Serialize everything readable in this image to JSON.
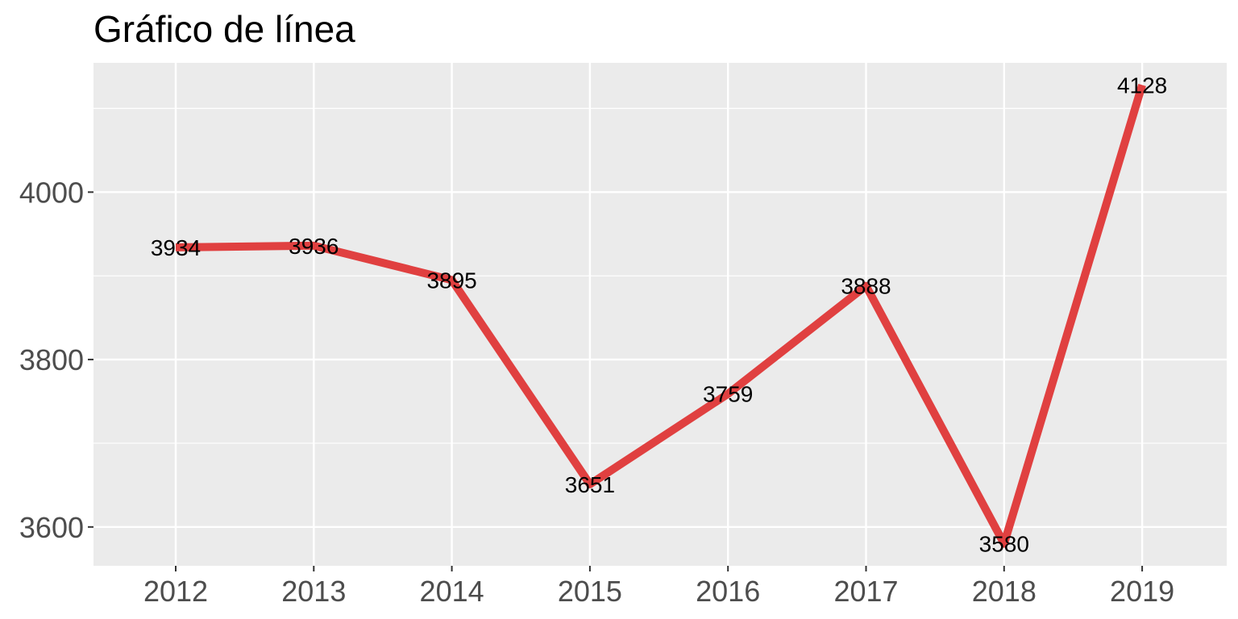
{
  "chart_data": {
    "type": "line",
    "title": "Gráfico de línea",
    "xlabel": "",
    "ylabel": "",
    "x": [
      "2012",
      "2013",
      "2014",
      "2015",
      "2016",
      "2017",
      "2018",
      "2019"
    ],
    "series": [
      {
        "values": [
          3934,
          3936,
          3895,
          3651,
          3759,
          3888,
          3580,
          4128
        ],
        "color": "#e04040"
      }
    ],
    "data_labels": [
      "3934",
      "3936",
      "3895",
      "3651",
      "3759",
      "3888",
      "3580",
      "4128"
    ],
    "y_ticks": [
      3600,
      3800,
      4000
    ],
    "y_tick_labels": [
      "3600",
      "3800",
      "4000"
    ],
    "ylim": [
      3553.6,
      4154.4
    ],
    "grid": true,
    "legend": "none",
    "panel_background": "#ebebeb",
    "grid_color": "#ffffff"
  }
}
